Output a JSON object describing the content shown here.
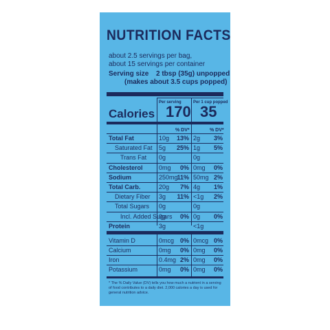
{
  "title": "NUTRITION FACTS",
  "servings": [
    "about 2.5 servings per bag,",
    "about 15 servings per container"
  ],
  "serving_size": {
    "label": "Serving size",
    "value": "2 tbsp (35g) unpopped",
    "note": "(makes about 3.5 cups popped)"
  },
  "columns": [
    "Per serving",
    "Per 1 cup popped"
  ],
  "calories": {
    "label": "Calories",
    "values": [
      "170",
      "35"
    ]
  },
  "dv_header": [
    "% DV*",
    "% DV*"
  ],
  "rows": [
    {
      "label": "Total Fat",
      "style": "bold",
      "per_serving": {
        "amount": "10g",
        "dv": "13%"
      },
      "per_cup": {
        "amount": "2g",
        "dv": "3%"
      }
    },
    {
      "label": "Saturated Fat",
      "style": "indent",
      "per_serving": {
        "amount": "5g",
        "dv": "25%"
      },
      "per_cup": {
        "amount": "1g",
        "dv": "5%"
      }
    },
    {
      "label": "Trans Fat",
      "style": "indent2",
      "per_serving": {
        "amount": "0g"
      },
      "per_cup": {
        "amount": "0g"
      }
    },
    {
      "label": "Cholesterol",
      "style": "bold",
      "per_serving": {
        "amount": "0mg",
        "dv": "0%"
      },
      "per_cup": {
        "amount": "0mg",
        "dv": "0%"
      }
    },
    {
      "label": "Sodium",
      "style": "bold",
      "per_serving": {
        "amount": "250mg",
        "dv": "11%"
      },
      "per_cup": {
        "amount": "50mg",
        "dv": "2%"
      }
    },
    {
      "label": "Total Carb.",
      "style": "bold",
      "per_serving": {
        "amount": "20g",
        "dv": "7%"
      },
      "per_cup": {
        "amount": "4g",
        "dv": "1%"
      }
    },
    {
      "label": "Dietary Fiber",
      "style": "indent",
      "per_serving": {
        "amount": "3g",
        "dv": "11%"
      },
      "per_cup": {
        "amount": "<1g",
        "dv": "2%"
      }
    },
    {
      "label": "Total Sugars",
      "style": "indent",
      "per_serving": {
        "amount": "0g"
      },
      "per_cup": {
        "amount": "0g"
      }
    },
    {
      "label": "Incl. Added Sugars",
      "style": "indent2",
      "per_serving": {
        "amount": "0g",
        "dv": "0%"
      },
      "per_cup": {
        "amount": "0g",
        "dv": "0%"
      }
    },
    {
      "label": "Protein",
      "style": "bold",
      "per_serving": {
        "amount": "3g"
      },
      "per_cup": {
        "amount": "<1g"
      }
    }
  ],
  "vitamins": [
    {
      "label": "Vitamin D",
      "per_serving": {
        "amount": "0mcg",
        "dv": "0%"
      },
      "per_cup": {
        "amount": "0mcg",
        "dv": "0%"
      }
    },
    {
      "label": "Calcium",
      "per_serving": {
        "amount": "0mg",
        "dv": "0%"
      },
      "per_cup": {
        "amount": "0mg",
        "dv": "0%"
      }
    },
    {
      "label": "Iron",
      "per_serving": {
        "amount": "0.4mg",
        "dv": "2%"
      },
      "per_cup": {
        "amount": "0mg",
        "dv": "0%"
      }
    },
    {
      "label": "Potassium",
      "per_serving": {
        "amount": "0mg",
        "dv": "0%"
      },
      "per_cup": {
        "amount": "0mg",
        "dv": "0%"
      }
    }
  ],
  "footnote": "* The % Daily Value (DV) tells you how much a nutrient in a serving of food contributes to a daily diet. 2,000 calories a day is used for general nutrition advice."
}
